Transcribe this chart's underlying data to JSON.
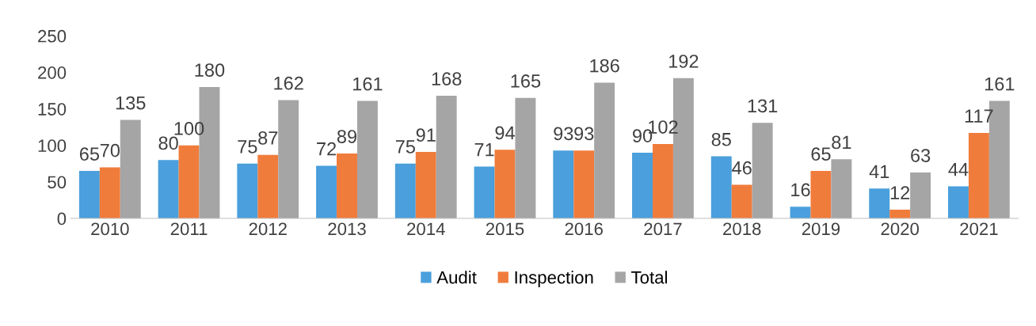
{
  "chart_data": {
    "type": "bar",
    "categories": [
      "2010",
      "2011",
      "2012",
      "2013",
      "2014",
      "2015",
      "2016",
      "2017",
      "2018",
      "2019",
      "2020",
      "2021"
    ],
    "series": [
      {
        "name": "Audit",
        "color": "#4a9fdc",
        "values": [
          65,
          80,
          75,
          72,
          75,
          71,
          93,
          90,
          85,
          16,
          41,
          44
        ]
      },
      {
        "name": "Inspection",
        "color": "#f07c3c",
        "values": [
          70,
          100,
          87,
          89,
          91,
          94,
          93,
          102,
          46,
          65,
          12,
          117
        ]
      },
      {
        "name": "Total",
        "color": "#a5a5a5",
        "values": [
          135,
          180,
          162,
          161,
          168,
          165,
          186,
          192,
          131,
          81,
          63,
          161
        ]
      }
    ],
    "ylim": [
      0,
      250
    ],
    "yticks": [
      0,
      50,
      100,
      150,
      200,
      250
    ],
    "data_labels": true,
    "grid": false,
    "legend": "bottom"
  }
}
